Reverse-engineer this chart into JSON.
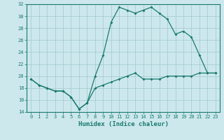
{
  "title": "",
  "xlabel": "Humidex (Indice chaleur)",
  "ylabel": "",
  "background_color": "#cce8ec",
  "line_color": "#1a7a6e",
  "grid_color": "#a0c8cc",
  "xlim": [
    -0.5,
    23.5
  ],
  "ylim": [
    14,
    32
  ],
  "xticks": [
    0,
    1,
    2,
    3,
    4,
    5,
    6,
    7,
    8,
    9,
    10,
    11,
    12,
    13,
    14,
    15,
    16,
    17,
    18,
    19,
    20,
    21,
    22,
    23
  ],
  "yticks": [
    14,
    16,
    18,
    20,
    22,
    24,
    26,
    28,
    30,
    32
  ],
  "series1_x": [
    0,
    1,
    2,
    3,
    4,
    5,
    6,
    7,
    8,
    9,
    10,
    11,
    12,
    13,
    14,
    15,
    16,
    17,
    18,
    19,
    20,
    21,
    22,
    23
  ],
  "series1_y": [
    19.5,
    18.5,
    18.0,
    17.5,
    17.5,
    16.5,
    14.5,
    15.5,
    20.0,
    23.5,
    29.0,
    31.5,
    31.0,
    30.5,
    31.0,
    31.5,
    30.5,
    29.5,
    27.0,
    27.5,
    26.5,
    23.5,
    20.5,
    20.5
  ],
  "series2_x": [
    0,
    1,
    2,
    3,
    4,
    5,
    6,
    7,
    8,
    9,
    10,
    11,
    12,
    13,
    14,
    15,
    16,
    17,
    18,
    19,
    20,
    21,
    22,
    23
  ],
  "series2_y": [
    19.5,
    18.5,
    18.0,
    17.5,
    17.5,
    16.5,
    14.5,
    15.5,
    18.0,
    18.5,
    19.0,
    19.5,
    20.0,
    20.5,
    19.5,
    19.5,
    19.5,
    20.0,
    20.0,
    20.0,
    20.0,
    20.5,
    20.5,
    20.5
  ]
}
